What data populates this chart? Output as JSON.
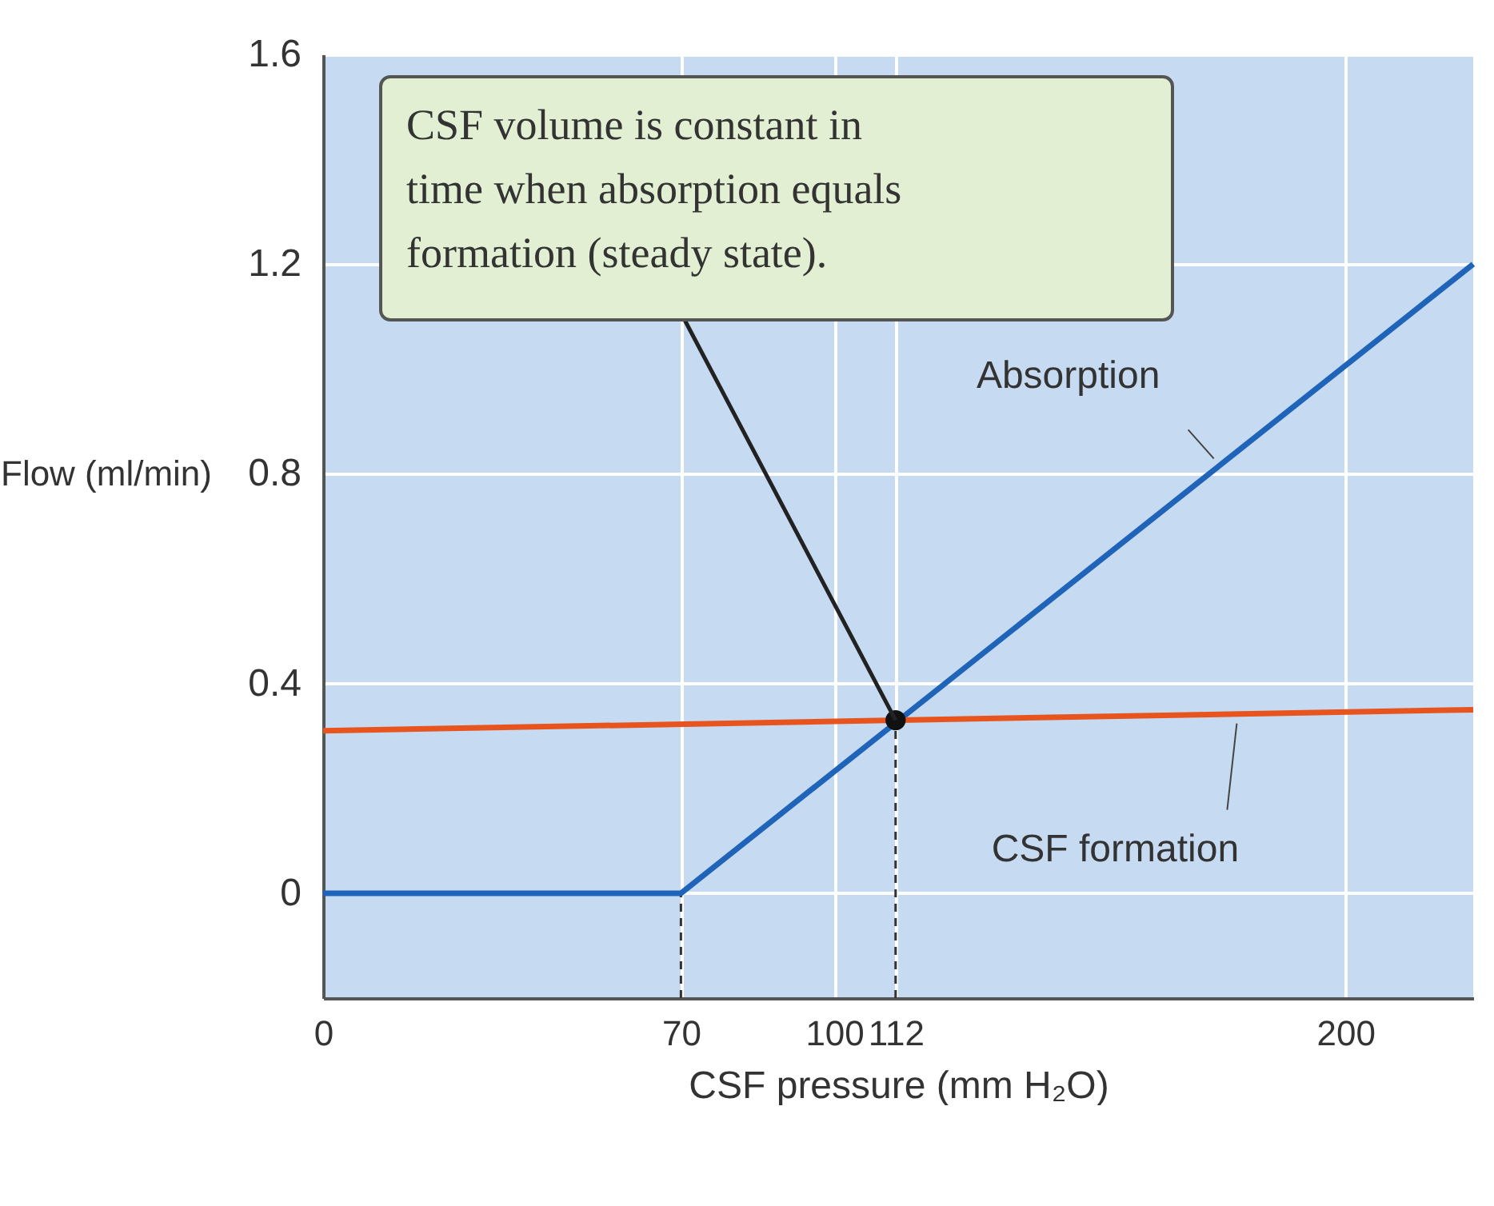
{
  "chart_data": {
    "type": "line",
    "xlabel": "CSF pressure (mm H₂O)",
    "ylabel": "Flow (ml/min)",
    "xlim": [
      0,
      225
    ],
    "ylim": [
      -0.2,
      1.6
    ],
    "xticks": [
      0,
      70,
      100,
      112,
      200
    ],
    "yticks": [
      0,
      0.4,
      0.8,
      1.2,
      1.6
    ],
    "grid": true,
    "marker": "none",
    "line_style": "solid",
    "series": [
      {
        "name": "Absorption",
        "color": "#1f64b8",
        "x": [
          0,
          70,
          225
        ],
        "values": [
          0,
          0,
          1.2
        ]
      },
      {
        "name": "CSF formation",
        "color": "#e8541e",
        "x": [
          0,
          225
        ],
        "values": [
          0.31,
          0.35
        ]
      },
      {
        "type": "scatter",
        "marker": "circle",
        "color": "#111111",
        "x": [
          112
        ],
        "values": [
          0.33
        ]
      }
    ],
    "ref_lines": [
      {
        "axis": "x",
        "value": 70,
        "color": "#333333",
        "line_style": "dashed"
      },
      {
        "axis": "x",
        "value": 112,
        "color": "#333333",
        "line_style": "dashed"
      }
    ],
    "annotations": [
      {
        "text": "CSF volume is constant in time when absorption equals formation (steady state).",
        "x": 112,
        "y": 0.33
      }
    ]
  }
}
